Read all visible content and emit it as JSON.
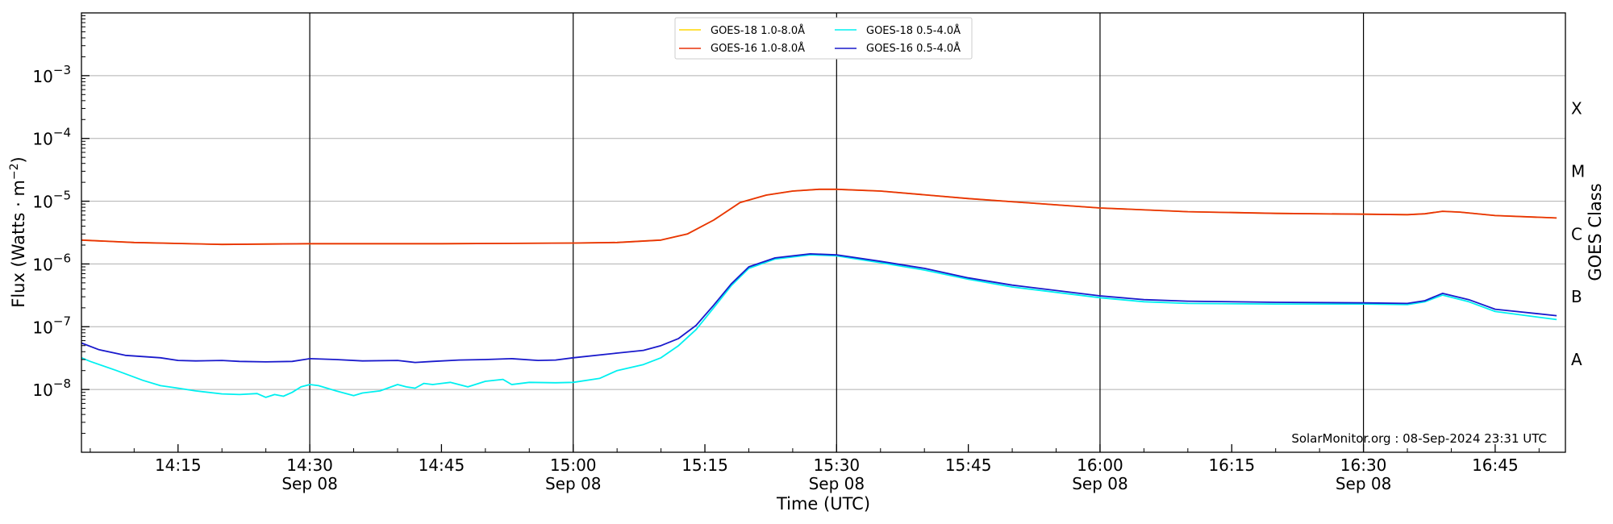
{
  "chart_data": {
    "type": "line",
    "xlabel": "Time (UTC)",
    "ylabel": "Flux (Watts · m",
    "ylabel_sup": "−2",
    "ylabel_close": ")",
    "right_label": "GOES Class",
    "yscale": "log",
    "ylim": [
      1e-09,
      0.01
    ],
    "xlim": [
      "14:04",
      "16:53"
    ],
    "grid": "horizontal",
    "legend_position": "top-center",
    "annotation": "SolarMonitor.org : 08-Sep-2024 23:31 UTC",
    "y_ticks": [
      {
        "value": -8,
        "base": "10",
        "exp": "−8"
      },
      {
        "value": -7,
        "base": "10",
        "exp": "−7"
      },
      {
        "value": -6,
        "base": "10",
        "exp": "−6"
      },
      {
        "value": -5,
        "base": "10",
        "exp": "−5"
      },
      {
        "value": -4,
        "base": "10",
        "exp": "−4"
      },
      {
        "value": -3,
        "base": "10",
        "exp": "−3"
      }
    ],
    "x_ticks": [
      {
        "time": "14:15",
        "label": "14:15",
        "sub": ""
      },
      {
        "time": "14:30",
        "label": "14:30",
        "sub": "Sep 08"
      },
      {
        "time": "14:45",
        "label": "14:45",
        "sub": ""
      },
      {
        "time": "15:00",
        "label": "15:00",
        "sub": "Sep 08"
      },
      {
        "time": "15:15",
        "label": "15:15",
        "sub": ""
      },
      {
        "time": "15:30",
        "label": "15:30",
        "sub": "Sep 08"
      },
      {
        "time": "15:45",
        "label": "15:45",
        "sub": ""
      },
      {
        "time": "16:00",
        "label": "16:00",
        "sub": "Sep 08"
      },
      {
        "time": "16:15",
        "label": "16:15",
        "sub": ""
      },
      {
        "time": "16:30",
        "label": "16:30",
        "sub": "Sep 08"
      },
      {
        "time": "16:45",
        "label": "16:45",
        "sub": ""
      }
    ],
    "vertical_lines": [
      "14:30",
      "15:00",
      "15:30",
      "16:00",
      "16:30"
    ],
    "goes_classes": [
      {
        "label": "A",
        "flux": 3e-08
      },
      {
        "label": "B",
        "flux": 3e-07
      },
      {
        "label": "C",
        "flux": 3e-06
      },
      {
        "label": "M",
        "flux": 3e-05
      },
      {
        "label": "X",
        "flux": 0.0003
      }
    ],
    "series": [
      {
        "name": "GOES-18 1.0-8.0Å",
        "color": "#ffd700",
        "x": [
          "14:04",
          "14:10",
          "14:20",
          "14:30",
          "14:45",
          "15:00",
          "15:05",
          "15:10",
          "15:13",
          "15:16",
          "15:19",
          "15:22",
          "15:25",
          "15:28",
          "15:30",
          "15:35",
          "15:45",
          "16:00",
          "16:10",
          "16:20",
          "16:30",
          "16:35",
          "16:37",
          "16:39",
          "16:41",
          "16:45",
          "16:52"
        ],
        "y": [
          2.4e-06,
          2.2e-06,
          2.05e-06,
          2.1e-06,
          2.1e-06,
          2.15e-06,
          2.2e-06,
          2.4e-06,
          3e-06,
          5e-06,
          9.5e-06,
          1.25e-05,
          1.45e-05,
          1.55e-05,
          1.55e-05,
          1.45e-05,
          1.1e-05,
          7.8e-06,
          6.8e-06,
          6.4e-06,
          6.2e-06,
          6.1e-06,
          6.3e-06,
          6.9e-06,
          6.7e-06,
          5.9e-06,
          5.4e-06
        ]
      },
      {
        "name": "GOES-16 1.0-8.0Å",
        "color": "#e8320a",
        "x": [
          "14:04",
          "14:10",
          "14:20",
          "14:30",
          "14:45",
          "15:00",
          "15:05",
          "15:10",
          "15:13",
          "15:16",
          "15:19",
          "15:22",
          "15:25",
          "15:28",
          "15:30",
          "15:35",
          "15:45",
          "16:00",
          "16:10",
          "16:20",
          "16:30",
          "16:35",
          "16:37",
          "16:39",
          "16:41",
          "16:45",
          "16:52"
        ],
        "y": [
          2.4e-06,
          2.2e-06,
          2.05e-06,
          2.1e-06,
          2.1e-06,
          2.15e-06,
          2.2e-06,
          2.4e-06,
          3e-06,
          5e-06,
          9.5e-06,
          1.25e-05,
          1.45e-05,
          1.55e-05,
          1.55e-05,
          1.45e-05,
          1.1e-05,
          7.8e-06,
          6.8e-06,
          6.4e-06,
          6.2e-06,
          6.1e-06,
          6.3e-06,
          6.9e-06,
          6.7e-06,
          5.9e-06,
          5.4e-06
        ]
      },
      {
        "name": "GOES-18 0.5-4.0Å",
        "color": "#00f0f0",
        "x": [
          "14:04",
          "14:05",
          "14:08",
          "14:11",
          "14:13",
          "14:15",
          "14:17",
          "14:20",
          "14:22",
          "14:24",
          "14:25",
          "14:26",
          "14:27",
          "14:28",
          "14:29",
          "14:30",
          "14:31",
          "14:33",
          "14:35",
          "14:36",
          "14:38",
          "14:40",
          "14:41",
          "14:42",
          "14:43",
          "14:44",
          "14:45",
          "14:46",
          "14:48",
          "14:50",
          "14:52",
          "14:53",
          "14:55",
          "14:58",
          "15:00",
          "15:03",
          "15:05",
          "15:08",
          "15:10",
          "15:12",
          "15:14",
          "15:16",
          "15:18",
          "15:20",
          "15:23",
          "15:27",
          "15:30",
          "15:35",
          "15:40",
          "15:45",
          "15:50",
          "16:00",
          "16:05",
          "16:10",
          "16:20",
          "16:30",
          "16:35",
          "16:37",
          "16:39",
          "16:42",
          "16:45",
          "16:52"
        ],
        "y": [
          3.2e-08,
          2.8e-08,
          2e-08,
          1.4e-08,
          1.15e-08,
          1.05e-08,
          9.5e-09,
          8.5e-09,
          8.3e-09,
          8.6e-09,
          7.5e-09,
          8.3e-09,
          7.8e-09,
          9e-09,
          1.1e-08,
          1.2e-08,
          1.15e-08,
          9.5e-09,
          8e-09,
          8.8e-09,
          9.5e-09,
          1.2e-08,
          1.1e-08,
          1.05e-08,
          1.25e-08,
          1.2e-08,
          1.25e-08,
          1.3e-08,
          1.1e-08,
          1.35e-08,
          1.45e-08,
          1.2e-08,
          1.3e-08,
          1.28e-08,
          1.3e-08,
          1.5e-08,
          2e-08,
          2.5e-08,
          3.2e-08,
          5e-08,
          9e-08,
          2e-07,
          4.5e-07,
          8.5e-07,
          1.2e-06,
          1.4e-06,
          1.35e-06,
          1.05e-06,
          8e-07,
          5.7e-07,
          4.3e-07,
          2.9e-07,
          2.5e-07,
          2.35e-07,
          2.3e-07,
          2.3e-07,
          2.25e-07,
          2.5e-07,
          3.2e-07,
          2.5e-07,
          1.75e-07,
          1.3e-07
        ]
      },
      {
        "name": "GOES-16 0.5-4.0Å",
        "color": "#1a1acc",
        "x": [
          "14:04",
          "14:06",
          "14:09",
          "14:13",
          "14:15",
          "14:17",
          "14:20",
          "14:22",
          "14:25",
          "14:28",
          "14:30",
          "14:33",
          "14:36",
          "14:40",
          "14:42",
          "14:44",
          "14:47",
          "14:50",
          "14:53",
          "14:56",
          "14:58",
          "15:00",
          "15:05",
          "15:08",
          "15:10",
          "15:12",
          "15:14",
          "15:16",
          "15:18",
          "15:20",
          "15:23",
          "15:27",
          "15:30",
          "15:35",
          "15:40",
          "15:45",
          "15:50",
          "16:00",
          "16:05",
          "16:10",
          "16:20",
          "16:30",
          "16:35",
          "16:37",
          "16:39",
          "16:42",
          "16:45",
          "16:52"
        ],
        "y": [
          5.5e-08,
          4.3e-08,
          3.5e-08,
          3.2e-08,
          2.9e-08,
          2.85e-08,
          2.9e-08,
          2.8e-08,
          2.75e-08,
          2.8e-08,
          3.1e-08,
          3e-08,
          2.85e-08,
          2.9e-08,
          2.7e-08,
          2.8e-08,
          2.95e-08,
          3e-08,
          3.1e-08,
          2.9e-08,
          2.95e-08,
          3.2e-08,
          3.8e-08,
          4.2e-08,
          5e-08,
          6.5e-08,
          1.05e-07,
          2.2e-07,
          4.8e-07,
          9e-07,
          1.25e-06,
          1.45e-06,
          1.4e-06,
          1.1e-06,
          8.5e-07,
          6e-07,
          4.6e-07,
          3.1e-07,
          2.7e-07,
          2.55e-07,
          2.45e-07,
          2.4e-07,
          2.35e-07,
          2.6e-07,
          3.4e-07,
          2.7e-07,
          1.9e-07,
          1.5e-07
        ]
      }
    ]
  }
}
